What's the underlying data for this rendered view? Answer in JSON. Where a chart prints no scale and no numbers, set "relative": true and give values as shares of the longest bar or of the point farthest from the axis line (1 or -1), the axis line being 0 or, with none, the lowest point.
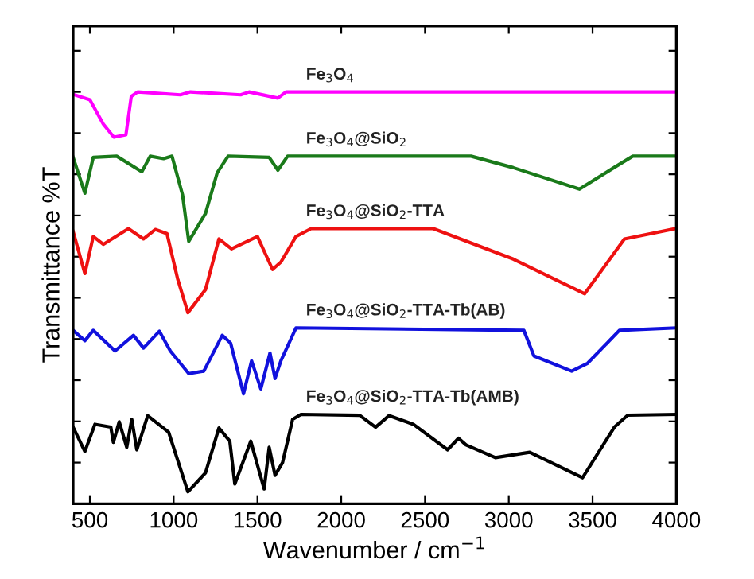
{
  "chart_data": {
    "type": "line",
    "relative": true,
    "xlabel": "Wavenumber / cm$^{−1}$",
    "ylabel": "Transmittance %T",
    "xlim": [
      400,
      4000
    ],
    "xticks": [
      500,
      1000,
      1500,
      2000,
      2500,
      3000,
      3500,
      4000
    ],
    "tick_labels": "x",
    "grid": false,
    "legend": false,
    "line_style": "solid",
    "marker": "none",
    "series": [
      {
        "name": "Fe$_{3}$O$_{4}$",
        "color": "#ff00ff",
        "x": [
          400,
          500,
          580,
          643,
          715,
          747,
          785,
          1040,
          1100,
          1400,
          1450,
          1622,
          1670,
          4000
        ],
        "values": [
          0.994,
          0.981,
          0.922,
          0.89,
          0.896,
          0.989,
          1.0,
          0.993,
          1.0,
          0.993,
          1.0,
          0.985,
          1.0,
          1.0
        ]
      },
      {
        "name": "Fe$_{3}$O$_{4}$@SiO$_{2}$",
        "color": "#1a7a1a",
        "x": [
          400,
          470,
          520,
          660,
          810,
          860,
          940,
          990,
          1053,
          1090,
          1190,
          1260,
          1325,
          1570,
          1622,
          1680,
          2775,
          3027,
          3422,
          3627,
          3740,
          4000
        ],
        "values": [
          0.841,
          0.754,
          0.841,
          0.844,
          0.806,
          0.844,
          0.838,
          0.844,
          0.75,
          0.637,
          0.705,
          0.804,
          0.844,
          0.841,
          0.81,
          0.844,
          0.844,
          0.816,
          0.764,
          0.816,
          0.844,
          0.844
        ]
      },
      {
        "name": "Fe$_{3}$O$_{4}$@SiO$_{2}$-TTA",
        "color": "#ee1111",
        "x": [
          400,
          470,
          520,
          580,
          730,
          820,
          890,
          960,
          1025,
          1085,
          1190,
          1270,
          1345,
          1500,
          1590,
          1640,
          1730,
          1820,
          2550,
          3027,
          3453,
          3690,
          3995
        ],
        "values": [
          0.661,
          0.559,
          0.649,
          0.63,
          0.668,
          0.643,
          0.666,
          0.656,
          0.544,
          0.464,
          0.52,
          0.643,
          0.619,
          0.649,
          0.569,
          0.587,
          0.649,
          0.668,
          0.668,
          0.594,
          0.51,
          0.643,
          0.668
        ]
      },
      {
        "name": "Fe$_{3}$O$_{4}$@SiO$_{2}$-TTA-Tb(AB)",
        "color": "#1111dd",
        "x": [
          400,
          470,
          520,
          650,
          760,
          820,
          915,
          980,
          1090,
          1180,
          1290,
          1340,
          1417,
          1465,
          1520,
          1575,
          1605,
          1640,
          1730,
          3090,
          3150,
          3375,
          3470,
          3660,
          4000
        ],
        "values": [
          0.421,
          0.396,
          0.421,
          0.371,
          0.409,
          0.378,
          0.419,
          0.371,
          0.316,
          0.322,
          0.409,
          0.39,
          0.267,
          0.347,
          0.279,
          0.366,
          0.304,
          0.347,
          0.427,
          0.421,
          0.359,
          0.322,
          0.341,
          0.421,
          0.427
        ]
      },
      {
        "name": "Fe$_{3}$O$_{4}$@SiO$_{2}$-TTA-Tb(AMB)",
        "color": "#000000",
        "x": [
          400,
          470,
          530,
          625,
          640,
          675,
          720,
          750,
          780,
          845,
          970,
          1085,
          1190,
          1270,
          1335,
          1365,
          1460,
          1540,
          1570,
          1605,
          1650,
          1710,
          1760,
          2110,
          2205,
          2285,
          2430,
          2635,
          2700,
          2745,
          2920,
          3125,
          3440,
          3630,
          3710,
          4000
        ],
        "values": [
          0.186,
          0.127,
          0.193,
          0.186,
          0.149,
          0.199,
          0.137,
          0.205,
          0.131,
          0.214,
          0.174,
          0.029,
          0.075,
          0.184,
          0.152,
          0.048,
          0.152,
          0.036,
          0.137,
          0.069,
          0.1,
          0.205,
          0.217,
          0.215,
          0.186,
          0.214,
          0.193,
          0.131,
          0.159,
          0.143,
          0.112,
          0.125,
          0.063,
          0.186,
          0.215,
          0.217
        ]
      }
    ]
  }
}
